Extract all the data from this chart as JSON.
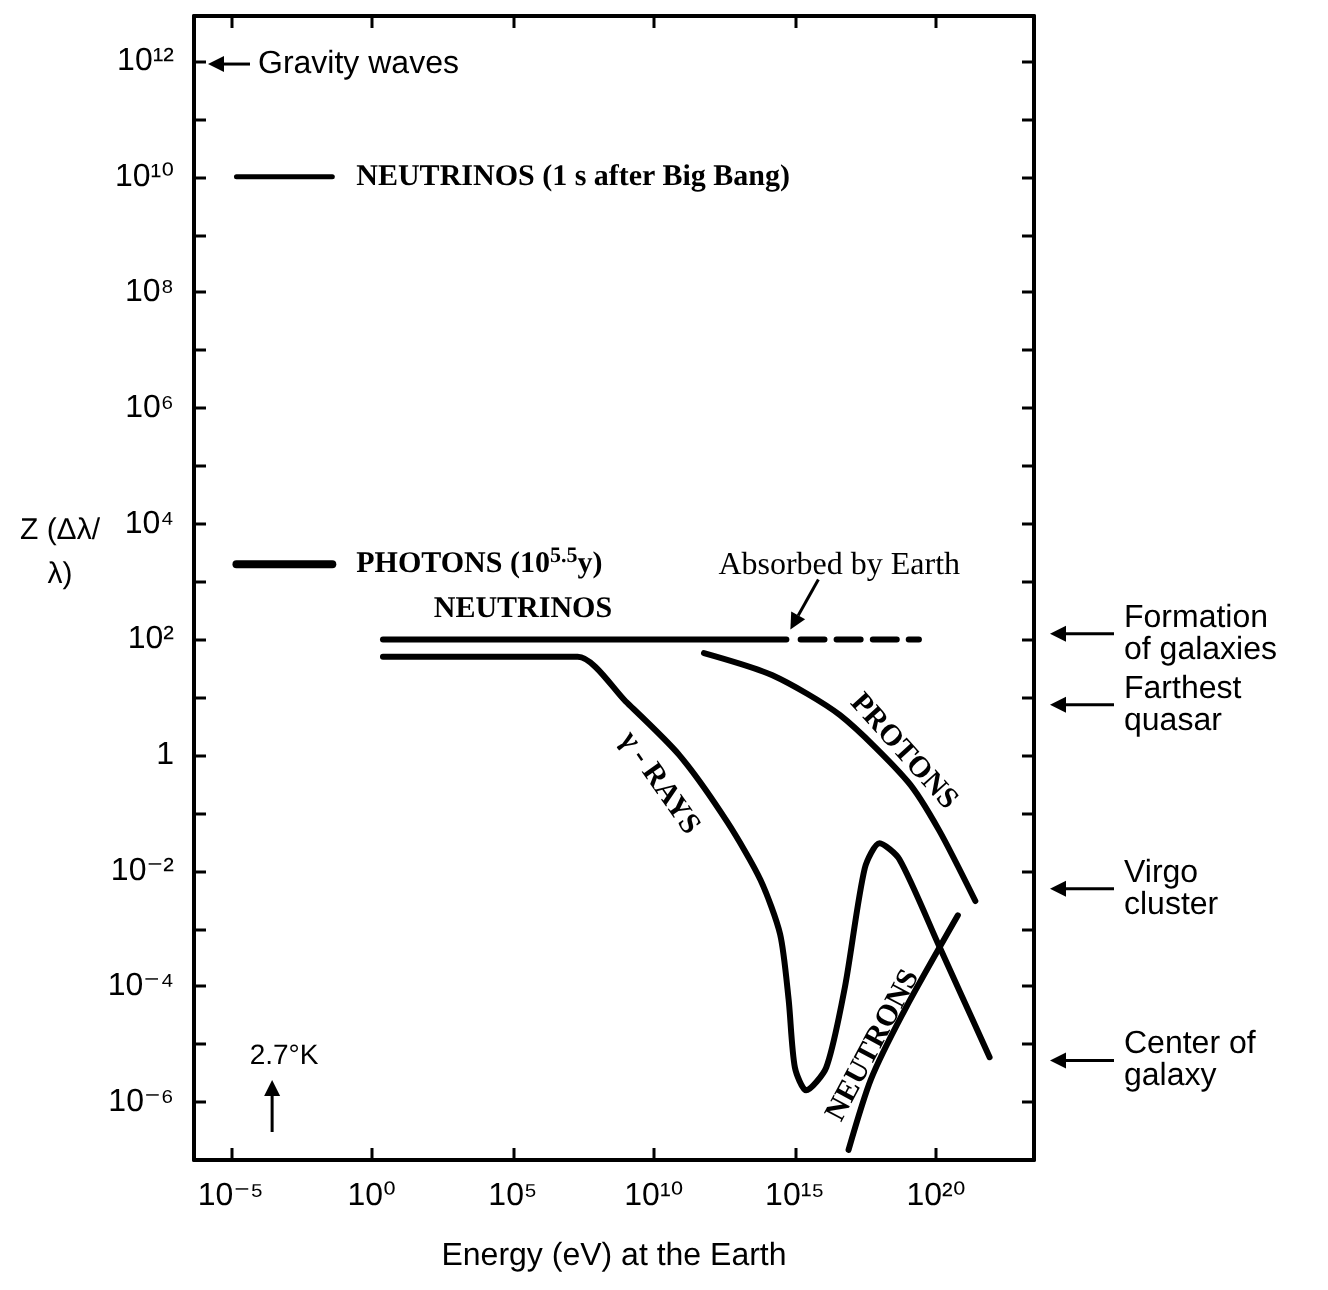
{
  "chart_data": {
    "type": "line",
    "xlabel": "Energy (eV) at the Earth",
    "ylabel": "Z (Δλ/λ)",
    "log": "xy",
    "marker": "none",
    "line_style": "solid",
    "xlim": [
      5e-07,
      3e+23
    ],
    "ylim": [
      1e-07,
      6000000000000.0
    ],
    "xticks": [
      {
        "value": 1e-05,
        "label": "10⁻⁵"
      },
      {
        "value": 1,
        "label": "10⁰"
      },
      {
        "value": 100000.0,
        "label": "10⁵"
      },
      {
        "value": 10000000000.0,
        "label": "10¹⁰"
      },
      {
        "value": 1000000000000000.0,
        "label": "10¹⁵"
      },
      {
        "value": 1e+20,
        "label": "10²⁰"
      }
    ],
    "yticks": [
      {
        "value": 1e-06,
        "label": "10⁻⁶"
      },
      {
        "value": 1e-05,
        "label": null
      },
      {
        "value": 0.0001,
        "label": "10⁻⁴"
      },
      {
        "value": 0.001,
        "label": null
      },
      {
        "value": 0.01,
        "label": "10⁻²"
      },
      {
        "value": 0.1,
        "label": null
      },
      1,
      {
        "value": 10,
        "label": null
      },
      {
        "value": 100,
        "label": "10²"
      },
      {
        "value": 1000.0,
        "label": null
      },
      {
        "value": 10000.0,
        "label": "10⁴"
      },
      {
        "value": 100000.0,
        "label": null
      },
      {
        "value": 1000000.0,
        "label": "10⁶"
      },
      {
        "value": 10000000.0,
        "label": null
      },
      {
        "value": 100000000.0,
        "label": "10⁸"
      },
      {
        "value": 1000000000.0,
        "label": null
      },
      {
        "value": 10000000000.0,
        "label": "10¹⁰"
      },
      {
        "value": 100000000000.0,
        "label": null
      },
      {
        "value": 1000000000000.0,
        "label": "10¹²"
      }
    ],
    "series": [
      {
        "name": "NEUTRINOS (1 s after Big Bang)",
        "color": "#000000",
        "x": [
          1.6e-05,
          0.04
        ],
        "values": [
          10000000000.0,
          10000000000.0
        ]
      },
      {
        "name": "PHOTONS (10$^{5.5}$y)",
        "color": "#000000",
        "x": [
          1.6e-05,
          0.04
        ],
        "values": [
          2000,
          2000
        ]
      },
      {
        "name": "NEUTRINOS",
        "color": "#000000",
        "x": [
          2.5,
          500000000000000.0
        ],
        "values": [
          100,
          100
        ]
      },
      {
        "color": "#000000",
        "line_style": "dashed",
        "x": [
          1600000000000000.0,
          2.5e+19
        ],
        "values": [
          100,
          100
        ]
      },
      {
        "name": "γ - RAYS",
        "color": "#000000",
        "x": [
          2.5,
          20000000.0,
          1000000000.0,
          80000000000.0,
          4000000000000.0,
          60000000000000.0,
          300000000000000.0,
          600000000000000.0,
          1000000000000000.0,
          2500000000000000.0,
          1.3e+16,
          6e+16,
          3e+17,
          1e+18,
          5e+18,
          1.3e+20,
          8e+21
        ],
        "values": [
          50,
          50,
          8.5,
          1,
          0.07,
          0.007,
          0.0008,
          6e-05,
          4e-06,
          1.6e-06,
          4e-06,
          0.0001,
          0.011,
          0.03,
          0.016,
          0.0005,
          6e-06
        ]
      },
      {
        "name": "PROTONS",
        "color": "#000000",
        "x": [
          600000000000.0,
          160000000000000.0,
          4e+16,
          1e+19,
          1.3e+20,
          2.5e+21
        ],
        "values": [
          58,
          24,
          4.9,
          0.35,
          0.05,
          0.003
        ]
      },
      {
        "name": "NEUTRONS",
        "color": "#000000",
        "x": [
          8e+16,
          5e+17,
          8e+18,
          6e+20
        ],
        "values": [
          1.5e-07,
          2.5e-06,
          4e-05,
          0.0017
        ]
      }
    ],
    "annotations": [
      "Gravity waves",
      {
        "text": "Absorbed by Earth",
        "x": 500000000000000.0,
        "y": 100
      },
      "2.7°K",
      "Formation of galaxies",
      "Farthest quasar",
      "Virgo cluster",
      "Center of galaxy"
    ]
  }
}
